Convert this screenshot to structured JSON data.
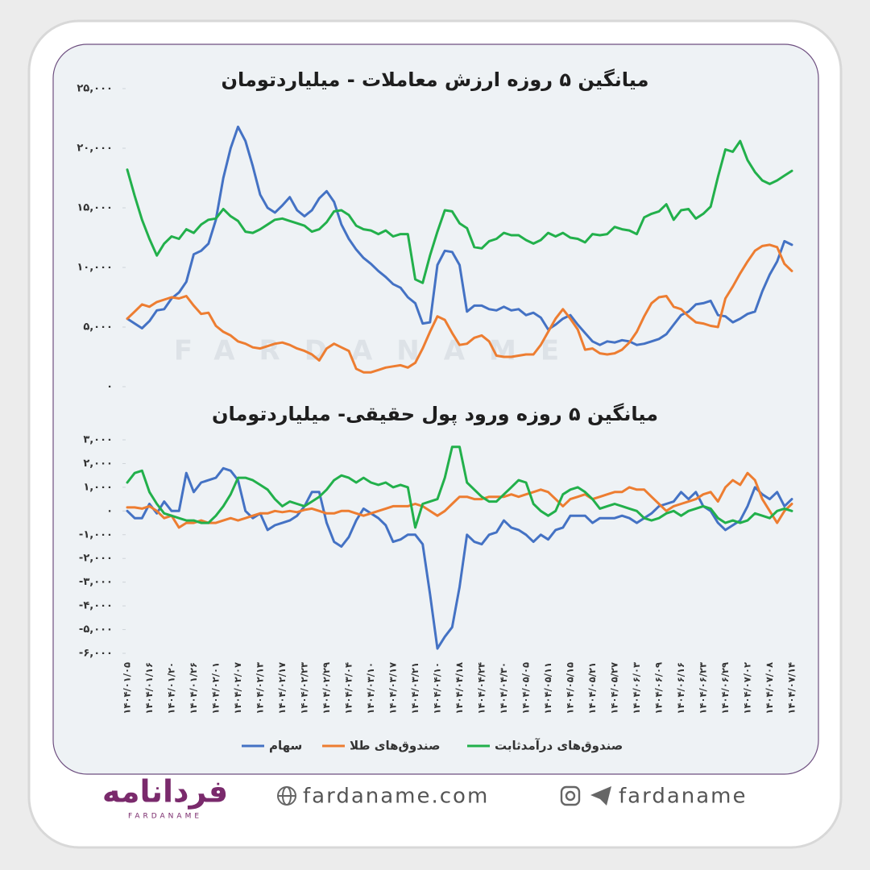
{
  "chart_data": [
    {
      "type": "line",
      "title": "میانگین ۵ روزه ارزش معاملات - میلیاردتومان",
      "ylim": [
        0,
        25000
      ],
      "yticks": [
        {
          "value": 0,
          "label": "۰"
        },
        {
          "value": 5000,
          "label": "۵,۰۰۰"
        },
        {
          "value": 10000,
          "label": "۱۰,۰۰۰"
        },
        {
          "value": 15000,
          "label": "۱۵,۰۰۰"
        },
        {
          "value": 20000,
          "label": "۲۰,۰۰۰"
        },
        {
          "value": 25000,
          "label": "۲۵,۰۰۰"
        }
      ],
      "series": [
        {
          "color": "#4472c4",
          "values": [
            5700,
            5300,
            4900,
            5500,
            6400,
            6500,
            7400,
            7900,
            8800,
            11100,
            11400,
            12000,
            14000,
            17500,
            20000,
            21800,
            20600,
            18500,
            16100,
            15000,
            14600,
            15200,
            15900,
            14800,
            14300,
            14800,
            15800,
            16400,
            15500,
            13600,
            12400,
            11500,
            10800,
            10300,
            9700,
            9200,
            8600,
            8300,
            7500,
            7000,
            5300,
            5400,
            10200,
            11400,
            11300,
            10200,
            6300,
            6800,
            6800,
            6500,
            6400,
            6700,
            6400,
            6500,
            6000,
            6200,
            5800,
            4800,
            5200,
            5700,
            6000,
            5200,
            4500,
            3800,
            3500,
            3800,
            3700,
            3900,
            3800,
            3500,
            3600,
            3800,
            4000,
            4400,
            5200,
            6000,
            6300,
            6900,
            7000,
            7200,
            6000,
            5900,
            5400,
            5700,
            6100,
            6300,
            8000,
            9400,
            10500,
            12200,
            11900
          ]
        },
        {
          "color": "#ed7d31",
          "values": [
            5700,
            6300,
            6900,
            6700,
            7100,
            7300,
            7500,
            7400,
            7600,
            6800,
            6100,
            6200,
            5100,
            4600,
            4300,
            3800,
            3600,
            3300,
            3200,
            3400,
            3600,
            3700,
            3500,
            3200,
            3000,
            2700,
            2200,
            3200,
            3600,
            3300,
            3000,
            1500,
            1200,
            1200,
            1400,
            1600,
            1700,
            1800,
            1600,
            2000,
            3200,
            4600,
            5900,
            5600,
            4500,
            3500,
            3600,
            4100,
            4300,
            3800,
            2600,
            2500,
            2500,
            2600,
            2700,
            2700,
            3500,
            4600,
            5700,
            6500,
            5700,
            4800,
            3100,
            3200,
            2800,
            2700,
            2800,
            3100,
            3700,
            4600,
            5900,
            7000,
            7500,
            7600,
            6700,
            6500,
            5900,
            5400,
            5300,
            5100,
            5000,
            7400,
            8400,
            9500,
            10500,
            11400,
            11800,
            11900,
            11700,
            10300,
            9700
          ]
        },
        {
          "color": "#22b04b",
          "values": [
            18200,
            16000,
            14000,
            12400,
            11000,
            12000,
            12600,
            12400,
            13200,
            12900,
            13600,
            14000,
            14100,
            14900,
            14300,
            13900,
            13000,
            12900,
            13200,
            13600,
            14000,
            14100,
            13900,
            13700,
            13500,
            13000,
            13200,
            13800,
            14700,
            14800,
            14400,
            13500,
            13200,
            13100,
            12800,
            13100,
            12600,
            12800,
            12800,
            9000,
            8700,
            11000,
            13000,
            14800,
            14700,
            13700,
            13300,
            11700,
            11600,
            12200,
            12400,
            12900,
            12700,
            12700,
            12300,
            12000,
            12300,
            12900,
            12600,
            12900,
            12500,
            12400,
            12100,
            12800,
            12700,
            12800,
            13400,
            13200,
            13100,
            12800,
            14200,
            14500,
            14700,
            15300,
            14000,
            14800,
            14900,
            14100,
            14500,
            15100,
            17600,
            19900,
            19700,
            20600,
            19000,
            18000,
            17300,
            17000,
            17300,
            17700,
            18100
          ]
        }
      ]
    },
    {
      "type": "line",
      "title": "میانگین ۵ روزه ورود پول حقیقی- میلیاردتومان",
      "ylim": [
        -6000,
        3000
      ],
      "yticks": [
        {
          "value": -6000,
          "label": "-۶,۰۰۰"
        },
        {
          "value": -5000,
          "label": "-۵,۰۰۰"
        },
        {
          "value": -4000,
          "label": "-۴,۰۰۰"
        },
        {
          "value": -3000,
          "label": "-۳,۰۰۰"
        },
        {
          "value": -2000,
          "label": "-۲,۰۰۰"
        },
        {
          "value": -1000,
          "label": "-۱,۰۰۰"
        },
        {
          "value": 0,
          "label": "۰"
        },
        {
          "value": 1000,
          "label": "۱,۰۰۰"
        },
        {
          "value": 2000,
          "label": "۲,۰۰۰"
        },
        {
          "value": 3000,
          "label": "۳,۰۰۰"
        }
      ],
      "categories": [
        "۱۴۰۴/۰۱/۰۵",
        null,
        null,
        "۱۴۰۴/۰۱/۱۶",
        null,
        null,
        "۱۴۰۴/۰۱/۲۰",
        null,
        null,
        "۱۴۰۴/۰۱/۲۶",
        null,
        null,
        "۱۴۰۴/۰۲/۰۱",
        null,
        null,
        "۱۴۰۴/۰۲/۰۷",
        null,
        null,
        "۱۴۰۴/۰۲/۱۳",
        null,
        null,
        "۱۴۰۴/۰۲/۱۷",
        null,
        null,
        "۱۴۰۴/۰۲/۲۳",
        null,
        null,
        "۱۴۰۴/۰۲/۲۹",
        null,
        null,
        "۱۴۰۴/۰۳/۰۴",
        null,
        null,
        "۱۴۰۴/۰۳/۱۰",
        null,
        null,
        "۱۴۰۴/۰۳/۱۷",
        null,
        null,
        "۱۴۰۴/۰۳/۲۱",
        null,
        null,
        "۱۴۰۴/۰۴/۱۰",
        null,
        null,
        "۱۴۰۴/۰۴/۱۸",
        null,
        null,
        "۱۴۰۴/۰۴/۲۴",
        null,
        null,
        "۱۴۰۴/۰۴/۳۰",
        null,
        null,
        "۱۴۰۴/۰۵/۰۵",
        null,
        null,
        "۱۴۰۴/۰۵/۱۱",
        null,
        null,
        "۱۴۰۴/۰۵/۱۵",
        null,
        null,
        "۱۴۰۴/۰۵/۲۱",
        null,
        null,
        "۱۴۰۴/۰۵/۲۷",
        null,
        null,
        "۱۴۰۴/۰۶/۰۳",
        null,
        null,
        "۱۴۰۴/۰۶/۰۹",
        null,
        null,
        "۱۴۰۴/۰۶/۱۶",
        null,
        null,
        "۱۴۰۴/۰۶/۲۳",
        null,
        null,
        "۱۴۰۴/۰۶/۲۹",
        null,
        null,
        "۱۴۰۴/۰۷/۰۲",
        null,
        null,
        "۱۴۰۴/۰۷/۰۸",
        null,
        null,
        "۱۴۰۴/۰۷/۱۴"
      ],
      "series": [
        {
          "name": "سهام",
          "color": "#4472c4",
          "values": [
            0,
            -300,
            -300,
            300,
            -100,
            400,
            0,
            0,
            1600,
            800,
            1200,
            1300,
            1400,
            1800,
            1700,
            1300,
            0,
            -300,
            -100,
            -800,
            -600,
            -500,
            -400,
            -200,
            200,
            800,
            800,
            -500,
            -1300,
            -1500,
            -1100,
            -400,
            100,
            -100,
            -300,
            -600,
            -1300,
            -1200,
            -1000,
            -1000,
            -1400,
            -3500,
            -5800,
            -5300,
            -4900,
            -3200,
            -1000,
            -1300,
            -1400,
            -1000,
            -900,
            -400,
            -700,
            -800,
            -1000,
            -1300,
            -1000,
            -1200,
            -800,
            -700,
            -200,
            -200,
            -200,
            -500,
            -300,
            -300,
            -300,
            -200,
            -300,
            -500,
            -300,
            -100,
            200,
            300,
            400,
            800,
            500,
            800,
            200,
            0,
            -500,
            -800,
            -600,
            -400,
            200,
            1000,
            700,
            500,
            800,
            200,
            500
          ]
        },
        {
          "name": "صندوق‌های طلا",
          "color": "#ed7d31",
          "values": [
            150,
            150,
            100,
            200,
            0,
            -300,
            -200,
            -700,
            -500,
            -500,
            -400,
            -500,
            -500,
            -400,
            -300,
            -400,
            -300,
            -200,
            -100,
            -100,
            0,
            -50,
            0,
            -50,
            50,
            100,
            0,
            -100,
            -100,
            0,
            0,
            -100,
            -200,
            -100,
            0,
            100,
            200,
            200,
            200,
            300,
            200,
            0,
            -200,
            0,
            300,
            600,
            600,
            500,
            500,
            600,
            600,
            600,
            700,
            600,
            700,
            800,
            900,
            800,
            500,
            200,
            500,
            600,
            700,
            500,
            600,
            700,
            800,
            800,
            1000,
            900,
            900,
            600,
            300,
            0,
            200,
            300,
            400,
            500,
            700,
            800,
            400,
            1000,
            1300,
            1100,
            1600,
            1300,
            500,
            0,
            -500,
            0,
            300
          ]
        },
        {
          "name": "صندوق‌های درآمدثابت",
          "color": "#22b04b",
          "values": [
            1200,
            1600,
            1700,
            800,
            300,
            -100,
            -200,
            -300,
            -400,
            -400,
            -500,
            -500,
            -200,
            200,
            700,
            1400,
            1400,
            1300,
            1100,
            900,
            500,
            200,
            400,
            300,
            200,
            400,
            600,
            900,
            1300,
            1500,
            1400,
            1200,
            1400,
            1200,
            1100,
            1200,
            1000,
            1100,
            1000,
            -700,
            300,
            400,
            500,
            1400,
            2700,
            2700,
            1200,
            900,
            600,
            400,
            400,
            700,
            1000,
            1300,
            1200,
            300,
            0,
            -200,
            0,
            700,
            900,
            1000,
            800,
            500,
            100,
            200,
            300,
            200,
            100,
            0,
            -300,
            -400,
            -300,
            -100,
            0,
            -200,
            0,
            100,
            200,
            100,
            -300,
            -500,
            -400,
            -500,
            -400,
            -100,
            -200,
            -300,
            0,
            100,
            0
          ]
        }
      ]
    }
  ],
  "watermark": "FARDANAME",
  "footer": {
    "logo": "فردانامه",
    "logo_sub": "FARDANAME",
    "website": "fardaname.com",
    "handle": "fardaname"
  }
}
